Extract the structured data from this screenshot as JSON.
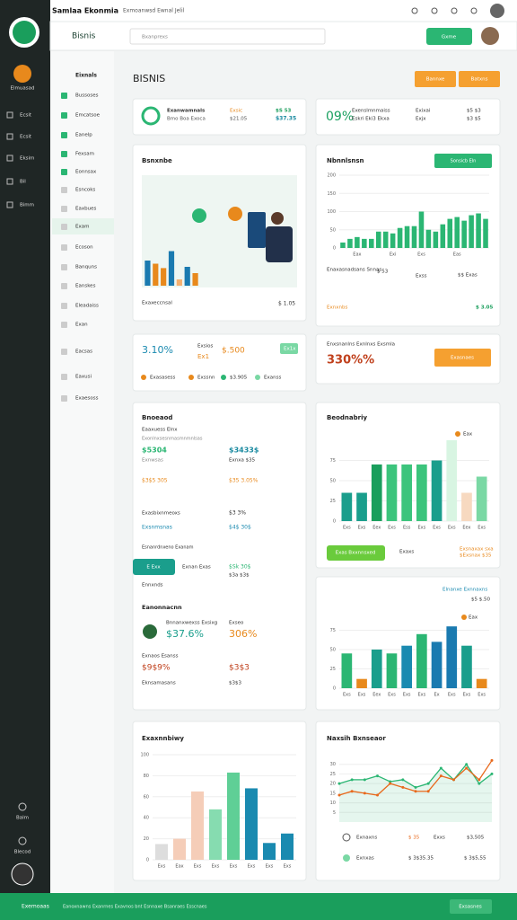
{
  "topbar": {
    "title": "Samlaa Ekonmia",
    "subtitle": "Exmoanwsd Ewnal Jelil"
  },
  "header": {
    "brand": "Bisnis",
    "search": "Bxanprexs",
    "button": "Gxme"
  },
  "rail": {
    "label": "Elmuasad",
    "items": [
      "Ecsit",
      "Ecsit",
      "Eksim",
      "Bil",
      "Bimm"
    ],
    "bottom": [
      "Balm",
      "Blecod"
    ]
  },
  "menu": {
    "title": "Eixnals",
    "items": [
      "Bussoses",
      "Emcatsoe",
      "Eanelp",
      "Fexsam",
      "Eonnsax",
      "Esncoks",
      "Eaxbues",
      "Exam",
      "Ecoson",
      "Banquns",
      "Eanskes",
      "Eleadaiss",
      "Exan",
      "Eacsas",
      "Eaxusi",
      "Exaesoss"
    ]
  },
  "page": {
    "title": "BISNIS",
    "buttons": [
      "Bannxe",
      "Batxns"
    ]
  },
  "card_a": {
    "texts": [
      "Exanwamnals",
      "Bmo Boa Exoca",
      "Exsic",
      "$21.05",
      "$S 53",
      "$37.35"
    ]
  },
  "card_b": {
    "texts": [
      "09%",
      "Exenslmnmaiss",
      "Eskri Eki3 Ekxa",
      "Exixai",
      "Exjx",
      "$5 $3",
      "$3 $5"
    ]
  },
  "card_c": {
    "title": "Bsnxnbe",
    "texts": [
      "Exaxeccnsal",
      "$ 1.05"
    ],
    "chart": {
      "type": "bar",
      "values": [
        40,
        35,
        28,
        55,
        10,
        30,
        20
      ],
      "colors": [
        "#1a7ab0",
        "#e8891c",
        "#e8891c",
        "#1a7ab0",
        "#f5b070",
        "#1a7ab0",
        "#e8891c"
      ],
      "ylim": [
        0,
        60
      ]
    }
  },
  "card_d": {
    "title": "Nbnnlsnsn",
    "button": "Sonsicb Eln",
    "texts": [
      "Enaxasnadsans Snnas",
      "$ 53",
      "Exss",
      "$$ Exas",
      "Exnxnbs",
      "$ 3.05"
    ],
    "chart": {
      "type": "bar",
      "values": [
        15,
        25,
        30,
        25,
        25,
        45,
        45,
        40,
        55,
        60,
        60,
        100,
        50,
        45,
        65,
        80,
        85,
        75,
        90,
        95,
        80
      ],
      "color": "#2bb673",
      "ylim": [
        0,
        200
      ],
      "yticks": [
        0,
        50,
        100,
        150,
        200
      ],
      "categories": [
        null,
        null,
        "Eax",
        null,
        null,
        null,
        null,
        "Exi",
        null,
        null,
        null,
        "Exs",
        null,
        null,
        null,
        null,
        "Eas",
        null,
        null,
        null,
        null
      ]
    }
  },
  "card_e": {
    "texts": [
      "3.10%",
      "Exsios",
      "Ex1",
      "$.500",
      "Ex1x",
      "Exasasess",
      "Exssnn",
      "$3.905",
      "Exanss"
    ]
  },
  "card_f": {
    "texts": [
      "Enxsnanlns Exnlnxs Exsmla",
      "330%%",
      "Exasnaes"
    ]
  },
  "card_g": {
    "title": "Bnoeaod",
    "texts": [
      "Eaaxuess Elnx",
      "Exonlnxsesnmasmnmnlsas",
      "$5304",
      "$3433$",
      "Exnwsas",
      "Exnxa $35",
      "$3$5 305",
      "$35 3.05%",
      "Exasbixnmeoxs",
      "$3 3%",
      "Exsnmsnas",
      "$4$ 30$",
      "Esnanrdnxeno Exanam",
      "E Exx",
      "Exnan Exas",
      "$Sk 30$",
      "$3a $3$",
      "Ennxnds",
      "Eanonnacnn",
      "Bnnanxwexss Exsixg",
      "$37.6%",
      "Exseo",
      "306%",
      "Exnaos Esanss",
      "$9$9%",
      "$3$3",
      "Eknsamasans",
      "$3$3"
    ]
  },
  "card_h": {
    "title": "Beodnabriy",
    "texts": [
      "Eax",
      "Exas Bxxnnsxed",
      "Exaxs",
      "Exsnaxax sxa",
      "$Exsnax $35"
    ],
    "chart": {
      "type": "bar",
      "values": [
        35,
        35,
        70,
        70,
        70,
        70,
        75,
        100,
        35,
        55
      ],
      "colors": [
        "#1a9e8c",
        "#1a9e8c",
        "#1a9e5c",
        "#3cc47c",
        "#3cc47c",
        "#3cc47c",
        "#1a9e8c",
        "#d8f5e2",
        "#f7d9c0",
        "#7ad8a4"
      ],
      "ylim": [
        0,
        100
      ],
      "yticks": [
        0,
        25,
        50,
        75
      ],
      "categories": [
        "Exs",
        "Exs",
        "Eex",
        "Exs",
        "Ess",
        "Exs",
        "Exs",
        "Exs",
        "Eex",
        "Exs"
      ]
    }
  },
  "card_i": {
    "texts": [
      "Elnanxe Exnnaxns",
      "$5 $.50",
      "Eax"
    ],
    "chart": {
      "type": "bar",
      "values": [
        45,
        12,
        50,
        45,
        55,
        70,
        60,
        80,
        55,
        12
      ],
      "colors": [
        "#2bb673",
        "#e8891c",
        "#1a9e8c",
        "#2bb673",
        "#1a8ab0",
        "#2bb673",
        "#1a7ab0",
        "#1a7ab0",
        "#1a9e8c",
        "#e8891c"
      ],
      "ylim": [
        0,
        100
      ],
      "yticks": [
        0,
        25,
        50,
        75
      ],
      "categories": [
        "Exs",
        "Exs",
        "Eex",
        "Exs",
        "Exs",
        "Exs",
        "Ex",
        "Exs",
        "Exs",
        "Exs"
      ]
    }
  },
  "card_j": {
    "title": "Exaxnnbiwy",
    "chart": {
      "type": "bar",
      "values": [
        15,
        20,
        65,
        48,
        83,
        68,
        16,
        25
      ],
      "colors": [
        "#dddddd",
        "#f5cdb8",
        "#f5cdb8",
        "#86dcb0",
        "#5fcf96",
        "#1a8ab0",
        "#1a8ab0",
        "#1a8ab0"
      ],
      "ylim": [
        0,
        100
      ],
      "yticks": [
        0,
        20,
        40,
        60,
        80,
        100
      ],
      "categories": [
        "Exs",
        "Eax",
        "Exs",
        "Exs",
        "Exs",
        "Exs",
        "Exs",
        "Exs"
      ]
    }
  },
  "card_k": {
    "title": "Naxsih Bxnseaor",
    "texts": [
      "Exnaxns",
      "$ 35",
      "Exxs",
      "$3,505",
      "Exnxas",
      "$ 3$35.35",
      "$ 3$5,55"
    ],
    "chart": {
      "type": "line",
      "ylim": [
        0,
        35
      ],
      "yticks": [
        5,
        10,
        15,
        20,
        25,
        30
      ],
      "series": [
        {
          "name": "Exnaxns",
          "color": "#2bb673",
          "values": [
            20,
            22,
            22,
            24,
            21,
            22,
            18,
            20,
            28,
            22,
            30,
            20,
            25
          ]
        },
        {
          "name": "Exnxas",
          "color": "#e8691c",
          "values": [
            14,
            16,
            15,
            14,
            20,
            18,
            16,
            16,
            24,
            22,
            28,
            22,
            32
          ]
        }
      ]
    }
  },
  "footer": {
    "texts": [
      "Exemoaas",
      "Eanoxnawns Exanrnes Exavnos bnt Esnnaxe Bsanraes Esscnaes",
      "Exsasnes"
    ]
  }
}
